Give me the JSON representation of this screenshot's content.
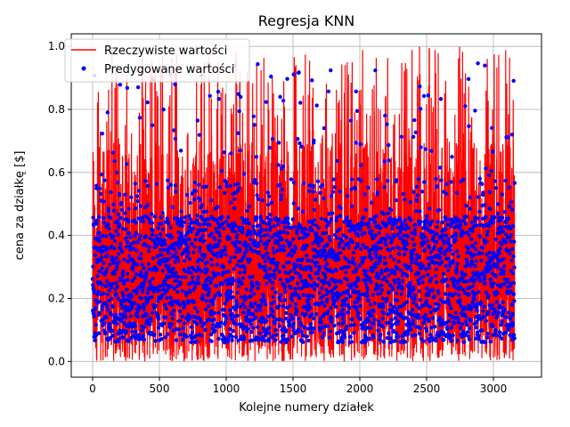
{
  "chart_data": {
    "type": "line",
    "title": "Regresja KNN",
    "xlabel": "Kolejne numery działek",
    "ylabel": "cena za działkę [$]",
    "xlim": [
      -160,
      3360
    ],
    "ylim": [
      -0.05,
      1.04
    ],
    "x_ticks": [
      0,
      500,
      1000,
      1500,
      2000,
      2500,
      3000
    ],
    "x_tick_labels": [
      "0",
      "500",
      "1000",
      "1500",
      "2000",
      "2500",
      "3000"
    ],
    "y_ticks": [
      0.0,
      0.2,
      0.4,
      0.6,
      0.8,
      1.0
    ],
    "y_tick_labels": [
      "0.0",
      "0.2",
      "0.4",
      "0.6",
      "0.8",
      "1.0"
    ],
    "grid": true,
    "legend_position": "top-left",
    "n_points": 3160,
    "series": [
      {
        "name": "Rzeczywiste wartości",
        "kind": "line",
        "color": "#ff0000",
        "x_range": [
          0,
          3159
        ],
        "y_range": [
          0.0,
          1.0
        ]
      },
      {
        "name": "Predygowane wartości",
        "kind": "scatter",
        "color": "#0000ff",
        "x_range": [
          0,
          3159
        ],
        "y_range": [
          0.03,
          0.97
        ],
        "typical_range": [
          0.1,
          0.45
        ]
      }
    ]
  }
}
